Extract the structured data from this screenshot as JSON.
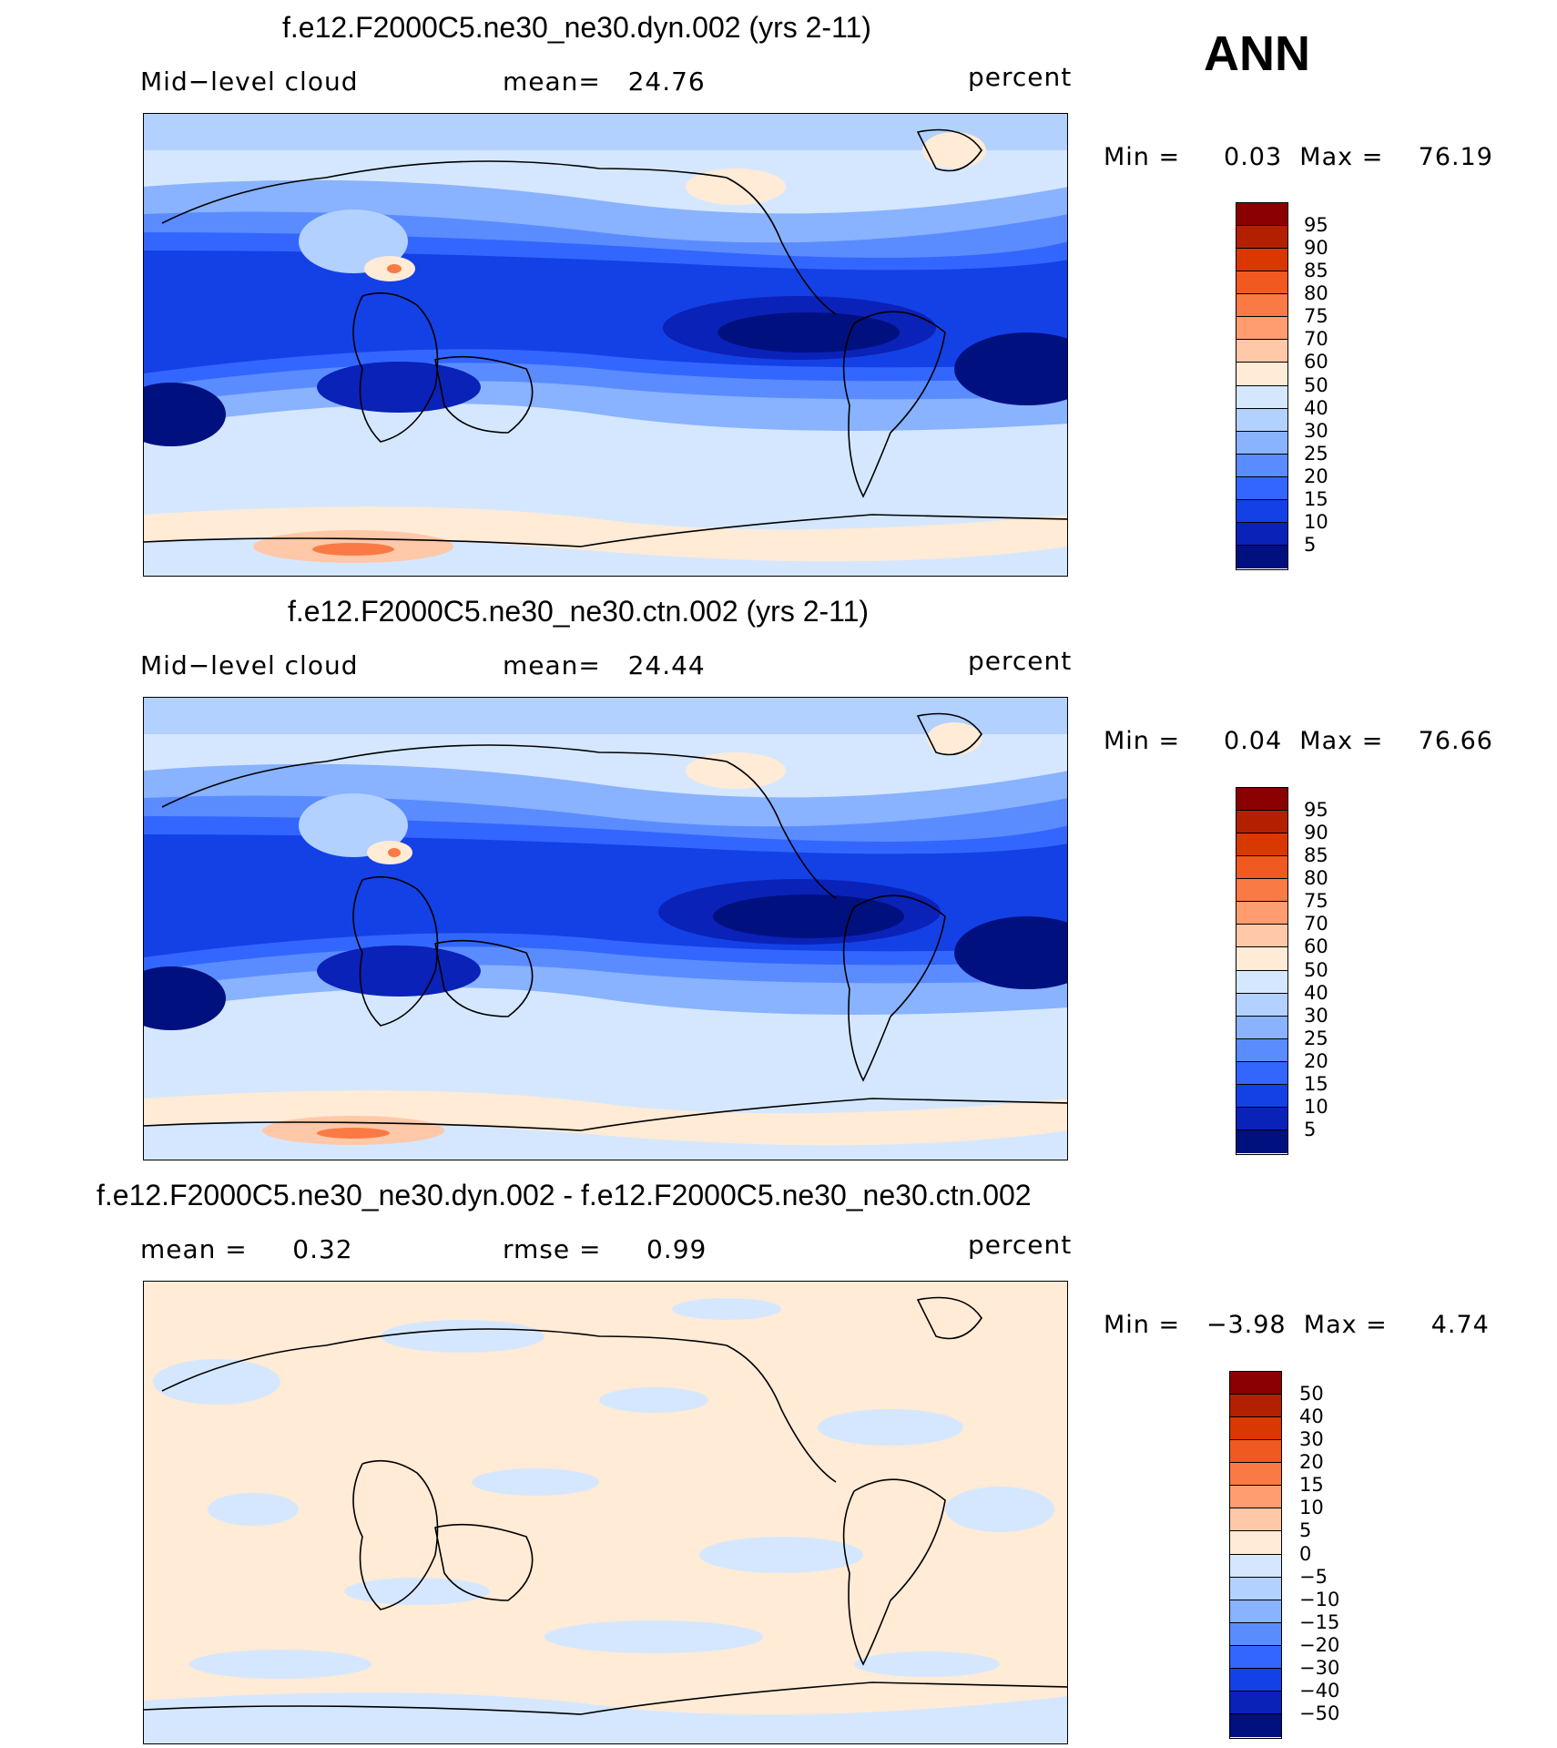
{
  "season": "ANN",
  "panels": [
    {
      "title": "f.e12.F2000C5.ne30_ne30.dyn.002 (yrs 2-11)",
      "left_label": "Mid−level cloud",
      "center_label": "mean=   24.76",
      "right_label": "percent",
      "minmax": "Min =     0.03  Max =    76.19",
      "colorbar_labels": [
        "95",
        "90",
        "85",
        "80",
        "75",
        "70",
        "60",
        "50",
        "40",
        "30",
        "25",
        "20",
        "15",
        "10",
        "5"
      ],
      "colors": [
        "#8b0000",
        "#b22000",
        "#d93800",
        "#f05a20",
        "#fa7a45",
        "#ff9d70",
        "#ffc8a8",
        "#ffebd6",
        "#d5e7ff",
        "#b3d1ff",
        "#89b2ff",
        "#5a8cff",
        "#3366ff",
        "#1441e6",
        "#0a22b8",
        "#00107f"
      ]
    },
    {
      "title": "f.e12.F2000C5.ne30_ne30.ctn.002 (yrs 2-11)",
      "left_label": "Mid−level cloud",
      "center_label": "mean=   24.44",
      "right_label": "percent",
      "minmax": "Min =     0.04  Max =    76.66",
      "colorbar_labels": [
        "95",
        "90",
        "85",
        "80",
        "75",
        "70",
        "60",
        "50",
        "40",
        "30",
        "25",
        "20",
        "15",
        "10",
        "5"
      ],
      "colors": [
        "#8b0000",
        "#b22000",
        "#d93800",
        "#f05a20",
        "#fa7a45",
        "#ff9d70",
        "#ffc8a8",
        "#ffebd6",
        "#d5e7ff",
        "#b3d1ff",
        "#89b2ff",
        "#5a8cff",
        "#3366ff",
        "#1441e6",
        "#0a22b8",
        "#00107f"
      ]
    },
    {
      "title": "f.e12.F2000C5.ne30_ne30.dyn.002 - f.e12.F2000C5.ne30_ne30.ctn.002",
      "left_label": "mean =     0.32",
      "center_label": "rmse =     0.99",
      "right_label": "percent",
      "minmax": "Min =   −3.98  Max =     4.74",
      "colorbar_labels": [
        "50",
        "40",
        "30",
        "20",
        "15",
        "10",
        "5",
        "0",
        "−5",
        "−10",
        "−15",
        "−20",
        "−30",
        "−40",
        "−50"
      ],
      "colors": [
        "#8b0000",
        "#b22000",
        "#d93800",
        "#f05a20",
        "#fa7a45",
        "#ff9d70",
        "#ffc8a8",
        "#ffebd6",
        "#d5e7ff",
        "#b3d1ff",
        "#89b2ff",
        "#5a8cff",
        "#3366ff",
        "#1441e6",
        "#0a22b8",
        "#00107f"
      ]
    }
  ]
}
